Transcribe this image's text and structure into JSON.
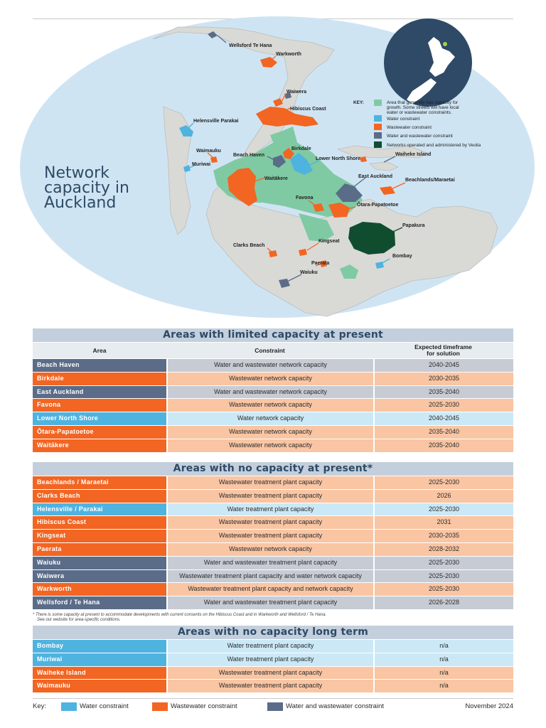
{
  "map": {
    "title_lines": [
      "Network",
      "capacity in",
      "Auckland"
    ],
    "key": {
      "heading": "KEY:",
      "items": [
        {
          "color": "#7fcaa3",
          "lines": [
            "Area that generally has capacity for",
            "growth. Some streets will have local",
            "water or wastewater constraints."
          ]
        },
        {
          "color": "#4fb3e0",
          "lines": [
            "Water constraint"
          ]
        },
        {
          "color": "#f26522",
          "lines": [
            "Wastewater constraint"
          ]
        },
        {
          "color": "#5a6c88",
          "lines": [
            "Water and wastewater constraint"
          ]
        },
        {
          "color": "#0f4d2e",
          "lines": [
            "Networks operated and administered by Veolia"
          ]
        }
      ]
    },
    "labels": {
      "wellsford": "Wellsford Te Hana",
      "warkworth": "Warkworth",
      "waiwera": "Waiwera",
      "hibiscus": "Hibiscus Coast",
      "helensville": "Helensville Parakai",
      "waimauku": "Waimauku",
      "beach_haven": "Beach Haven",
      "birkdale": "Birkdale",
      "lower_north_shore": "Lower North Shore",
      "waiheke": "Waiheke Island",
      "muriwai": "Muriwai",
      "waitakere": "Waitākere",
      "east_auckland": "East Auckland",
      "beachlands": "Beachlands/Maraetai",
      "favona": "Favona",
      "otara": "Ōtara-Papatoetoe",
      "papakura": "Papakura",
      "kingseat": "Kingseat",
      "clarks_beach": "Clarks Beach",
      "bombay": "Bombay",
      "paerata": "Paerata",
      "waiuku": "Waiuku"
    }
  },
  "limited": {
    "title": "Areas with limited capacity at present",
    "headers": {
      "area": "Area",
      "constraint": "Constraint",
      "timeframe_l1": "Expected timeframe",
      "timeframe_l2": "for solution"
    },
    "rows": [
      {
        "area": "Beach Haven",
        "constraint": "Water and wastewater network capacity",
        "timeframe": "2040-2045",
        "type": "both"
      },
      {
        "area": "Birkdale",
        "constraint": "Wastewater network capacity",
        "timeframe": "2030-2035",
        "type": "wastewater"
      },
      {
        "area": "East Auckland",
        "constraint": "Water and wastewater network capacity",
        "timeframe": "2035-2040",
        "type": "both"
      },
      {
        "area": "Favona",
        "constraint": "Wastewater network capacity",
        "timeframe": "2025-2030",
        "type": "wastewater"
      },
      {
        "area": "Lower North Shore",
        "constraint": "Water network capacity",
        "timeframe": "2040-2045",
        "type": "water"
      },
      {
        "area": "Ōtara-Papatoetoe",
        "constraint": "Wastewater network capacity",
        "timeframe": "2035-2040",
        "type": "wastewater"
      },
      {
        "area": "Waitākere",
        "constraint": "Wastewater network capacity",
        "timeframe": "2035-2040",
        "type": "wastewater"
      }
    ]
  },
  "no_capacity": {
    "title": "Areas with no capacity at present*",
    "rows": [
      {
        "area": "Beachlands / Maraetai",
        "constraint": "Wastewater treatment plant capacity",
        "timeframe": "2025-2030",
        "type": "wastewater"
      },
      {
        "area": "Clarks Beach",
        "constraint": "Wastewater treatment plant capacity",
        "timeframe": "2026",
        "type": "wastewater"
      },
      {
        "area": "Helensville / Parakai",
        "constraint": "Water treatment plant capacity",
        "timeframe": "2025-2030",
        "type": "water"
      },
      {
        "area": "Hibiscus Coast",
        "constraint": "Wastewater treatment plant capacity",
        "timeframe": "2031",
        "type": "wastewater"
      },
      {
        "area": "Kingseat",
        "constraint": "Wastewater treatment plant capacity",
        "timeframe": "2030-2035",
        "type": "wastewater"
      },
      {
        "area": "Paerata",
        "constraint": "Wastewater network capacity",
        "timeframe": "2028-2032",
        "type": "wastewater"
      },
      {
        "area": "Waiuku",
        "constraint": "Water and wastewater treatment plant capacity",
        "timeframe": "2025-2030",
        "type": "both"
      },
      {
        "area": "Waiwera",
        "constraint": "Wastewater treatment plant capacity and water network capacity",
        "timeframe": "2025-2030",
        "type": "both"
      },
      {
        "area": "Warkworth",
        "constraint": "Wastewater treatment plant capacity and network capacity",
        "timeframe": "2025-2030",
        "type": "wastewater"
      },
      {
        "area": "Wellsford / Te Hana",
        "constraint": "Water and wastewater treatment plant capacity",
        "timeframe": "2026-2028",
        "type": "both"
      }
    ],
    "footnote_l1": "* There is some capacity at present to accommodate developments with current consents on the Hibiscus Coast and in Warkworth and Wellsford / Te Hana.",
    "footnote_l2": "See our website for area-specific conditions."
  },
  "long_term": {
    "title": "Areas with no capacity long term",
    "rows": [
      {
        "area": "Bombay",
        "constraint": "Water treatment plant capacity",
        "timeframe": "n/a",
        "type": "water"
      },
      {
        "area": "Muriwai",
        "constraint": "Water treatment plant capacity",
        "timeframe": "n/a",
        "type": "water"
      },
      {
        "area": "Waiheke Island",
        "constraint": "Wastewater treatment plant capacity",
        "timeframe": "n/a",
        "type": "wastewater"
      },
      {
        "area": "Waimauku",
        "constraint": "Wastewater treatment plant capacity",
        "timeframe": "n/a",
        "type": "wastewater"
      }
    ]
  },
  "legend": {
    "label": "Key:",
    "items": [
      {
        "label": "Water constraint",
        "color": "#4fb3e0"
      },
      {
        "label": "Wastewater constraint",
        "color": "#f26522"
      },
      {
        "label": "Water and wastewater constraint",
        "color": "#5a6c88"
      }
    ],
    "date": "November 2024"
  }
}
